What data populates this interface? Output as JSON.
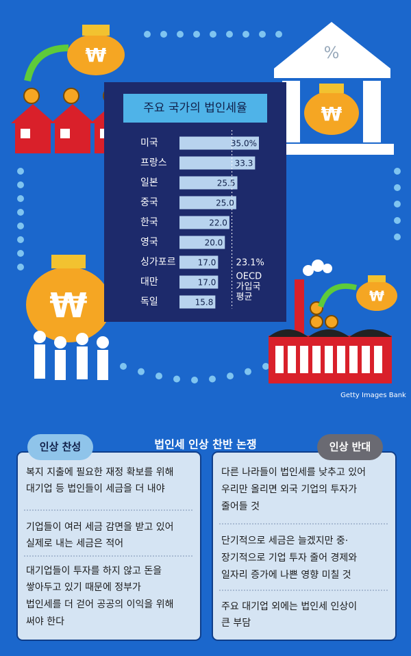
{
  "chart_data": {
    "type": "bar",
    "orientation": "horizontal",
    "title": "주요 국가의 법인세율",
    "categories": [
      "미국",
      "프랑스",
      "일본",
      "중국",
      "한국",
      "영국",
      "싱가포르",
      "대만",
      "독일"
    ],
    "values": [
      35.0,
      33.3,
      25.5,
      25.0,
      22.0,
      20.0,
      17.0,
      17.0,
      15.8
    ],
    "value_labels": [
      "35.0%",
      "33.3",
      "25.5",
      "25.0",
      "22.0",
      "20.0",
      "17.0",
      "17.0",
      "15.8"
    ],
    "color": "#b8d3ee",
    "xlim": [
      0,
      35
    ],
    "reference": {
      "value": 23.1,
      "label": "23.1%",
      "text": [
        "OECD",
        "가입국",
        "평균"
      ]
    }
  },
  "credit": "Getty Images Bank",
  "debate": {
    "title": "법인세 인상 찬반 논쟁",
    "pro": {
      "label": "인상 찬성",
      "items": [
        [
          "복지 지출에 필요한 재정 확보를 위해",
          "대기업 등 법인들이 세금을 더 내야"
        ],
        [
          "기업들이 여러 세금 감면을 받고 있어",
          "실제로 내는 세금은 적어"
        ],
        [
          "대기업들이 투자를 하지 않고 돈을",
          "쌓아두고 있기 때문에 정부가",
          "법인세를 더 걷어 공공의 이익을 위해",
          "써야 한다"
        ]
      ]
    },
    "con": {
      "label": "인상 반대",
      "items": [
        [
          "다른 나라들이 법인세를 낮추고 있어",
          "우리만 올리면 외국 기업의 투자가",
          "줄어들 것"
        ],
        [
          "단기적으로 세금은 늘겠지만 중·",
          "장기적으로 기업 투자 줄어 경제와",
          "일자리 증가에 나쁜 영향 미칠 것"
        ],
        [
          "주요 대기업 외에는 법인세 인상이",
          "큰 부담"
        ]
      ]
    }
  }
}
